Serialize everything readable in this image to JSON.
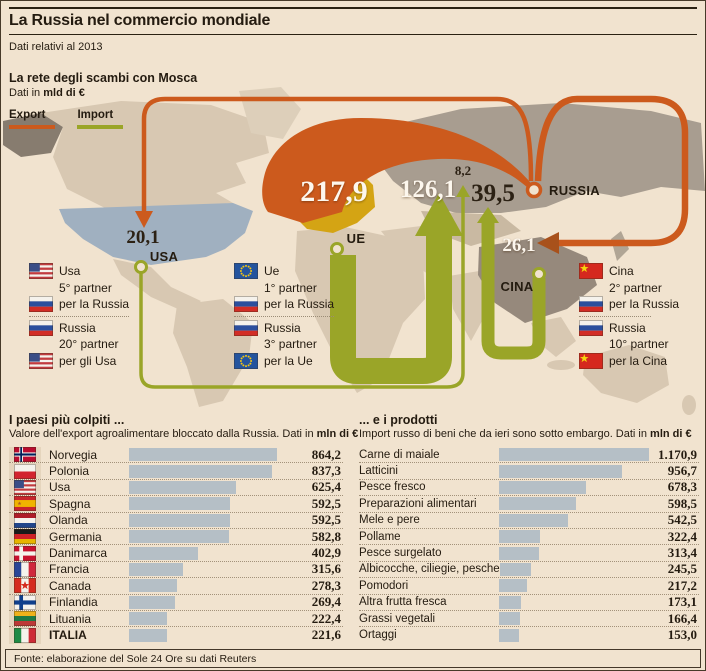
{
  "header": {
    "title": "La Russia nel commercio mondiale",
    "subtitle": "Dati relativi al 2013"
  },
  "map_section": {
    "title": "La rete degli scambi con Mosca",
    "note_prefix": "Dati in ",
    "note_unit": "mld di €",
    "legend": {
      "export_label": "Export",
      "import_label": "Import",
      "export_color": "#cc5a1d",
      "import_color": "#9aa528"
    },
    "labels": {
      "usa": "USA",
      "ue": "UE",
      "russia": "RUSSIA",
      "cina": "CINA"
    },
    "flows": [
      {
        "route": "Russia → Ue",
        "direction": "export",
        "value": "217,9"
      },
      {
        "route": "Ue → Russia",
        "direction": "import",
        "value": "126,1"
      },
      {
        "route": "Russia → Usa",
        "direction": "export",
        "value": "20,1"
      },
      {
        "route": "Usa → Russia",
        "direction": "import",
        "value": "8,2"
      },
      {
        "route": "Cina → Russia",
        "direction": "import",
        "value": "39,5"
      },
      {
        "route": "Russia → Cina",
        "direction": "export",
        "value": "26,1"
      }
    ],
    "partners": [
      {
        "groups": [
          [
            {
              "flag": "usa",
              "text": "Usa"
            },
            {
              "text": "5° partner"
            },
            {
              "flag": "russia",
              "text": "per la Russia"
            }
          ],
          [
            {
              "flag": "russia",
              "text": "Russia"
            },
            {
              "text": "20° partner"
            },
            {
              "flag": "usa",
              "text": "per gli Usa"
            }
          ]
        ]
      },
      {
        "groups": [
          [
            {
              "flag": "eu",
              "text": "Ue"
            },
            {
              "text": "1° partner"
            },
            {
              "flag": "russia",
              "text": "per la Russia"
            }
          ],
          [
            {
              "flag": "russia",
              "text": "Russia"
            },
            {
              "text": "3° partner"
            },
            {
              "flag": "eu",
              "text": "per la Ue"
            }
          ]
        ]
      },
      {
        "groups": [
          [
            {
              "flag": "china",
              "text": "Cina"
            },
            {
              "text": "2° partner"
            },
            {
              "flag": "russia",
              "text": "per la Russia"
            }
          ],
          [
            {
              "flag": "russia",
              "text": "Russia"
            },
            {
              "text": "10° partner"
            },
            {
              "flag": "china",
              "text": "per la Cina"
            }
          ]
        ]
      }
    ]
  },
  "left_chart": {
    "title": "I paesi più colpiti ...",
    "subtitle_text": "Valore dell'export agroalimentare bloccato dalla Russia. Dati in ",
    "subtitle_unit": "mln di €",
    "rows": [
      {
        "flag": "norway",
        "label": "Norvegia",
        "value": "864,2",
        "v": 864.2
      },
      {
        "flag": "poland",
        "label": "Polonia",
        "value": "837,3",
        "v": 837.3
      },
      {
        "flag": "usa",
        "label": "Usa",
        "value": "625,4",
        "v": 625.4
      },
      {
        "flag": "spain",
        "label": "Spagna",
        "value": "592,5",
        "v": 592.5
      },
      {
        "flag": "netherlands",
        "label": "Olanda",
        "value": "592,5",
        "v": 592.5
      },
      {
        "flag": "germany",
        "label": "Germania",
        "value": "582,8",
        "v": 582.8
      },
      {
        "flag": "denmark",
        "label": "Danimarca",
        "value": "402,9",
        "v": 402.9
      },
      {
        "flag": "france",
        "label": "Francia",
        "value": "315,6",
        "v": 315.6
      },
      {
        "flag": "canada",
        "label": "Canada",
        "value": "278,3",
        "v": 278.3
      },
      {
        "flag": "finland",
        "label": "Finlandia",
        "value": "269,4",
        "v": 269.4
      },
      {
        "flag": "lithuania",
        "label": "Lituania",
        "value": "222,4",
        "v": 222.4
      },
      {
        "flag": "italy",
        "label": "ITALIA",
        "value": "221,6",
        "v": 221.6,
        "bold": true
      }
    ]
  },
  "right_chart": {
    "title": "... e i prodotti",
    "subtitle_text": "Import russo di beni che da ieri sono sotto embargo. Dati in ",
    "subtitle_unit": "mln di €",
    "rows": [
      {
        "label": "Carne di maiale",
        "value": "1.170,9",
        "v": 1170.9
      },
      {
        "label": "Latticini",
        "value": "956,7",
        "v": 956.7
      },
      {
        "label": "Pesce fresco",
        "value": "678,3",
        "v": 678.3
      },
      {
        "label": "Preparazioni alimentari",
        "value": "598,5",
        "v": 598.5
      },
      {
        "label": "Mele e pere",
        "value": "542,5",
        "v": 542.5
      },
      {
        "label": "Pollame",
        "value": "322,4",
        "v": 322.4
      },
      {
        "label": "Pesce surgelato",
        "value": "313,4",
        "v": 313.4
      },
      {
        "label": "Albicocche, ciliegie, pesche",
        "value": "245,5",
        "v": 245.5
      },
      {
        "label": "Pomodori",
        "value": "217,2",
        "v": 217.2
      },
      {
        "label": "Altra frutta fresca",
        "value": "173,1",
        "v": 173.1
      },
      {
        "label": "Grassi vegetali",
        "value": "166,4",
        "v": 166.4
      },
      {
        "label": "Ortaggi",
        "value": "153,0",
        "v": 153.0
      }
    ]
  },
  "footer": {
    "source": "Fonte: elaborazione del Sole 24 Ore su dati Reuters"
  },
  "colors": {
    "background": "#f1e3cf",
    "export_orange": "#cc5a1d",
    "import_olive": "#9aa528",
    "bar_gray": "#b5bfc6",
    "land_tan": "#d8c8b2",
    "russia_land": "#a89d90",
    "usa_land": "#a0b0c0",
    "eu_land": "#d4a414",
    "china_land": "#96897c"
  },
  "chart_data": [
    {
      "type": "flow-map",
      "title": "La rete degli scambi con Mosca",
      "unit": "mld di €",
      "legend": [
        "Export",
        "Import"
      ],
      "flows": [
        {
          "from": "Russia",
          "to": "Ue",
          "direction": "export",
          "value": 217.9
        },
        {
          "from": "Ue",
          "to": "Russia",
          "direction": "import",
          "value": 126.1
        },
        {
          "from": "Russia",
          "to": "Usa",
          "direction": "export",
          "value": 20.1
        },
        {
          "from": "Usa",
          "to": "Russia",
          "direction": "import",
          "value": 8.2
        },
        {
          "from": "Cina",
          "to": "Russia",
          "direction": "import",
          "value": 39.5
        },
        {
          "from": "Russia",
          "to": "Cina",
          "direction": "export",
          "value": 26.1
        }
      ]
    },
    {
      "type": "bar",
      "title": "I paesi più colpiti ...",
      "subtitle": "Valore dell'export agroalimentare bloccato dalla Russia",
      "unit": "mln di €",
      "categories": [
        "Norvegia",
        "Polonia",
        "Usa",
        "Spagna",
        "Olanda",
        "Germania",
        "Danimarca",
        "Francia",
        "Canada",
        "Finlandia",
        "Lituania",
        "ITALIA"
      ],
      "values": [
        864.2,
        837.3,
        625.4,
        592.5,
        592.5,
        582.8,
        402.9,
        315.6,
        278.3,
        269.4,
        222.4,
        221.6
      ]
    },
    {
      "type": "bar",
      "title": "... e i prodotti",
      "subtitle": "Import russo di beni che da ieri sono sotto embargo",
      "unit": "mln di €",
      "categories": [
        "Carne di maiale",
        "Latticini",
        "Pesce fresco",
        "Preparazioni alimentari",
        "Mele e pere",
        "Pollame",
        "Pesce surgelato",
        "Albicocche, ciliegie, pesche",
        "Pomodori",
        "Altra frutta fresca",
        "Grassi vegetali",
        "Ortaggi"
      ],
      "values": [
        1170.9,
        956.7,
        678.3,
        598.5,
        542.5,
        322.4,
        313.4,
        245.5,
        217.2,
        173.1,
        166.4,
        153.0
      ]
    }
  ]
}
